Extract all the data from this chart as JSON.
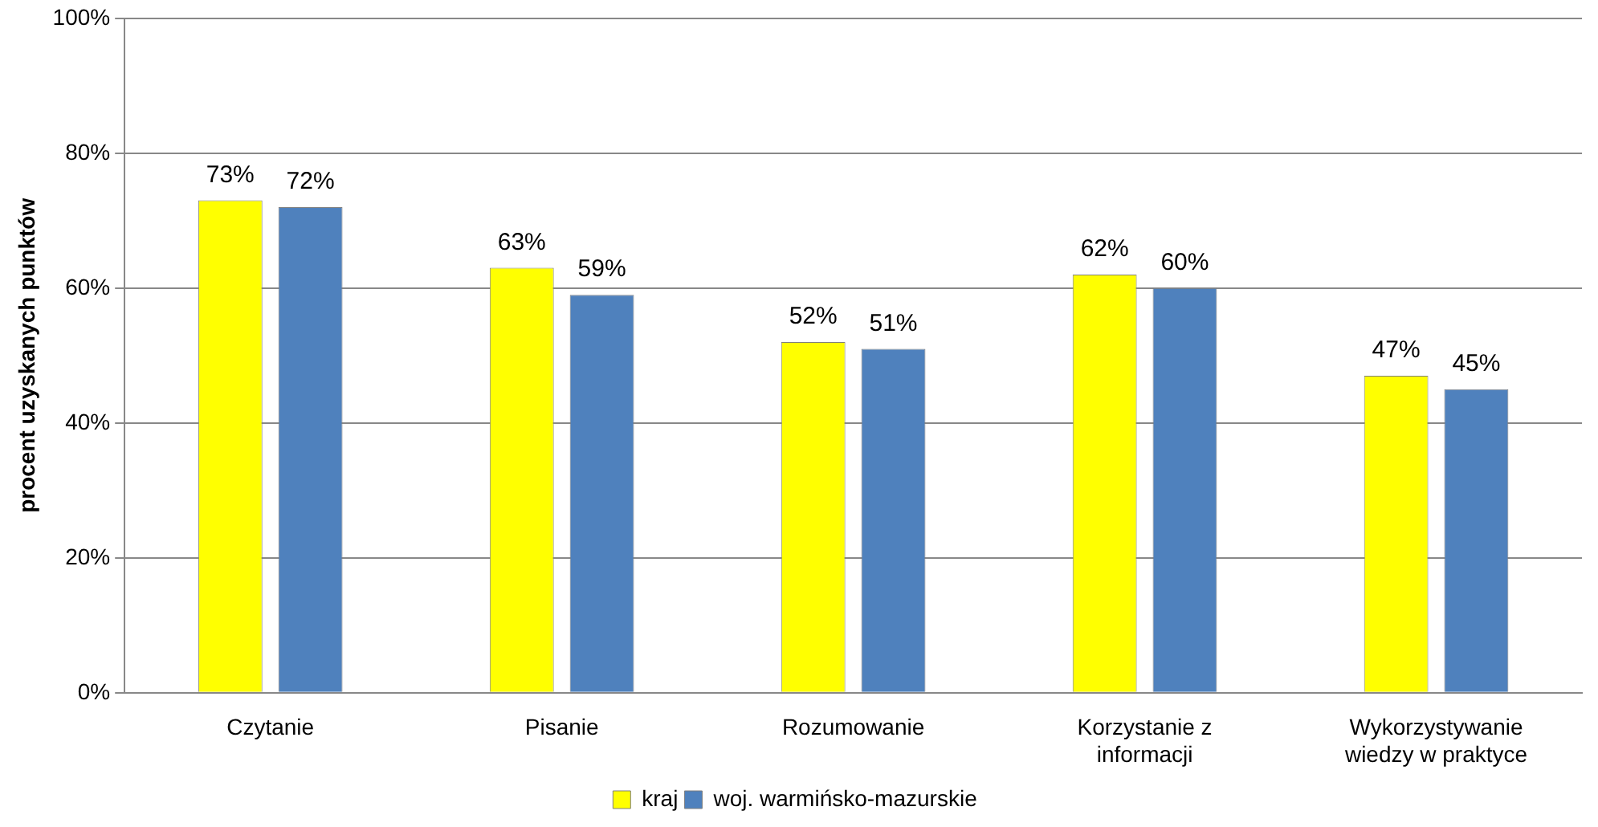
{
  "chart_data": {
    "type": "bar",
    "ylabel": "procent uzyskanych punktów",
    "categories": [
      "Czytanie",
      "Pisanie",
      "Rozumowanie",
      "Korzystanie z informacji",
      "Wykorzystywanie wiedzy w praktyce"
    ],
    "series": [
      {
        "name": "kraj",
        "color": "#ffff00",
        "values": [
          73,
          63,
          52,
          62,
          47
        ],
        "value_labels": [
          "73%",
          "63%",
          "52%",
          "62%",
          "47%"
        ]
      },
      {
        "name": "woj. warmińsko-mazurskie",
        "color": "#4f81bd",
        "values": [
          72,
          59,
          51,
          60,
          45
        ],
        "value_labels": [
          "72%",
          "59%",
          "51%",
          "60%",
          "45%"
        ]
      }
    ],
    "ylim": [
      0,
      100
    ],
    "yticks": [
      {
        "value": 0,
        "label": "0%"
      },
      {
        "value": 20,
        "label": "20%"
      },
      {
        "value": 40,
        "label": "40%"
      },
      {
        "value": 60,
        "label": "60%"
      },
      {
        "value": 80,
        "label": "80%"
      },
      {
        "value": 100,
        "label": "100%"
      }
    ],
    "grid": "y",
    "legend": "bottom"
  }
}
